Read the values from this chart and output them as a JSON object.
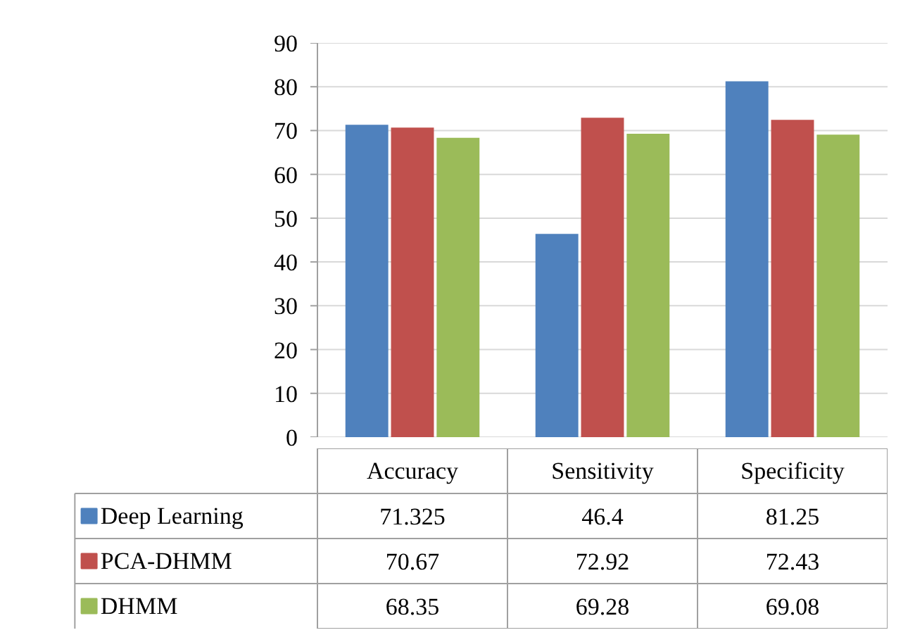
{
  "chart_data": {
    "type": "bar",
    "categories": [
      "Accuracy",
      "Sensitivity",
      "Specificity"
    ],
    "series": [
      {
        "name": "Deep Learning",
        "color": "#4f81bd",
        "values": [
          71.325,
          46.4,
          81.25
        ]
      },
      {
        "name": "PCA-DHMM",
        "color": "#c0504d",
        "values": [
          70.67,
          72.92,
          72.43
        ]
      },
      {
        "name": "DHMM",
        "color": "#9bbb59",
        "values": [
          68.35,
          69.28,
          69.08
        ]
      }
    ],
    "ylim": [
      0,
      90
    ],
    "yticks": [
      0,
      10,
      20,
      30,
      40,
      50,
      60,
      70,
      80,
      90
    ],
    "grid": "y",
    "legend": "bottom",
    "data_labels": true
  }
}
